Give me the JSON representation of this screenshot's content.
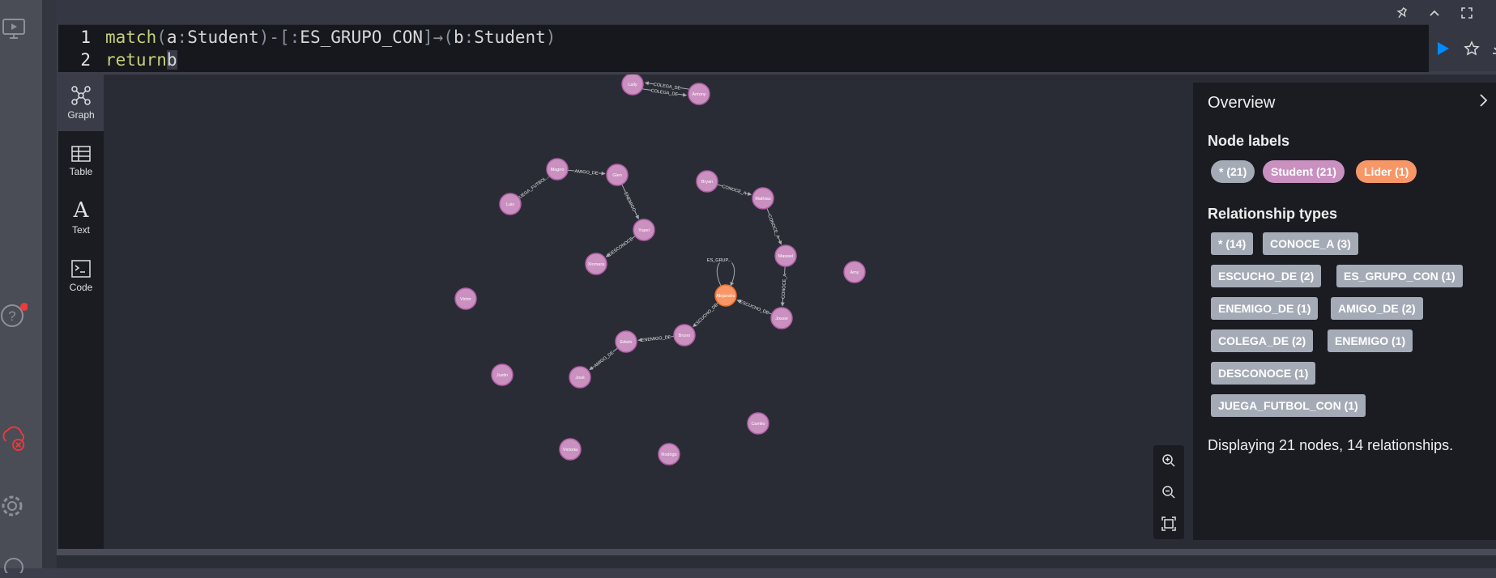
{
  "editor": {
    "lines": [
      {
        "num": "1",
        "t1": "match",
        "t2": " (",
        "t3": "a",
        "t4": ":",
        "t5": "Student",
        "t6": ")-[",
        "t7": ":",
        "t8": "ES_GRUPO_CON",
        "t9": "]→(",
        "t10": "b",
        "t11": ":",
        "t12": "Student",
        "t13": ")"
      },
      {
        "num": "2",
        "t1": "return",
        "t2": " ",
        "t3": "b"
      }
    ]
  },
  "tabs": [
    {
      "label": "Graph",
      "icon": "graph-icon",
      "active": true
    },
    {
      "label": "Table",
      "icon": "table-icon"
    },
    {
      "label": "Text",
      "icon": "text-icon",
      "glyph": "A"
    },
    {
      "label": "Code",
      "icon": "code-icon"
    }
  ],
  "graph": {
    "nodes": [
      {
        "id": "Laily",
        "label": "Laily",
        "type": "Student"
      },
      {
        "id": "Antony",
        "label": "Antony",
        "type": "Student"
      },
      {
        "id": "Magno",
        "label": "Magno",
        "type": "Student"
      },
      {
        "id": "Glen",
        "label": "Glen",
        "type": "Student"
      },
      {
        "id": "Luis",
        "label": "Luis",
        "type": "Student"
      },
      {
        "id": "Yupei",
        "label": "Yupei",
        "type": "Student"
      },
      {
        "id": "Xiomara",
        "label": "Xiomara",
        "type": "Student"
      },
      {
        "id": "Bryan",
        "label": "Bryan",
        "type": "Student"
      },
      {
        "id": "Mathias",
        "label": "Mathias",
        "type": "Student"
      },
      {
        "id": "Maxwel",
        "label": "Maxwel",
        "type": "Student"
      },
      {
        "id": "Amy",
        "label": "Amy",
        "type": "Student"
      },
      {
        "id": "Alejandro",
        "label": "Alejandro",
        "type": "Lider"
      },
      {
        "id": "Jossie",
        "label": "Jossie",
        "type": "Student"
      },
      {
        "id": "Victor",
        "label": "Victor",
        "type": "Student"
      },
      {
        "id": "Bruno",
        "label": "Bruno",
        "type": "Student"
      },
      {
        "id": "Edwin",
        "label": "Edwin",
        "type": "Student"
      },
      {
        "id": "Jose",
        "label": "José",
        "type": "Student"
      },
      {
        "id": "Justin",
        "label": "Justin",
        "type": "Student"
      },
      {
        "id": "Camilo",
        "label": "Camilo",
        "type": "Student"
      },
      {
        "id": "Victoria",
        "label": "Victoria",
        "type": "Student"
      },
      {
        "id": "Rodrigo",
        "label": "Rodrigo",
        "type": "Student"
      }
    ],
    "relationships": [
      {
        "from": "Laily",
        "to": "Antony",
        "type": "COLEGA_DE"
      },
      {
        "from": "Antony",
        "to": "Laily",
        "type": "COLEGA_DE"
      },
      {
        "from": "Magno",
        "to": "Glen",
        "type": "AMIGO_DE"
      },
      {
        "from": "Luis",
        "to": "Magno",
        "type": "JUEGA_FUTBOL..."
      },
      {
        "from": "Glen",
        "to": "Yupei",
        "type": "ENEMIGO"
      },
      {
        "from": "Yupei",
        "to": "Xiomara",
        "type": "DESCONOCE"
      },
      {
        "from": "Bryan",
        "to": "Mathias",
        "type": "CONOCE_A"
      },
      {
        "from": "Mathias",
        "to": "Maxwel",
        "type": "CONOCE_A"
      },
      {
        "from": "Maxwel",
        "to": "Jossie",
        "type": "CONOCE_A"
      },
      {
        "from": "Alejandro",
        "to": "Alejandro",
        "type": "ES_GRUP..."
      },
      {
        "from": "Jossie",
        "to": "Alejandro",
        "type": "ESCUCHO_DE"
      },
      {
        "from": "Alejandro",
        "to": "Bruno",
        "type": "ESCUCHO_DE"
      },
      {
        "from": "Bruno",
        "to": "Edwin",
        "type": "ENEMIGO_DE"
      },
      {
        "from": "Edwin",
        "to": "Jose",
        "type": "AMIGO_DE"
      }
    ]
  },
  "overview": {
    "title": "Overview",
    "node_labels_heading": "Node labels",
    "node_labels": [
      {
        "text": "* (21)",
        "color": "#a5abb6"
      },
      {
        "text": "Student (21)",
        "color": "#c990c0"
      },
      {
        "text": "Lider (1)",
        "color": "#f79767"
      }
    ],
    "relationship_types_heading": "Relationship types",
    "relationship_types": [
      "* (14)",
      "CONOCE_A (3)",
      "ESCUCHO_DE (2)",
      "ES_GRUPO_CON (1)",
      "ENEMIGO_DE (1)",
      "AMIGO_DE (2)",
      "COLEGA_DE (2)",
      "ENEMIGO (1)",
      "DESCONOCE (1)",
      "JUEGA_FUTBOL_CON (1)"
    ],
    "summary": "Displaying 21 nodes, 14 relationships."
  },
  "colors": {
    "student": "#c990c0",
    "lider": "#f79767",
    "accent": "#018bff",
    "notification": "#ed3a3a"
  }
}
